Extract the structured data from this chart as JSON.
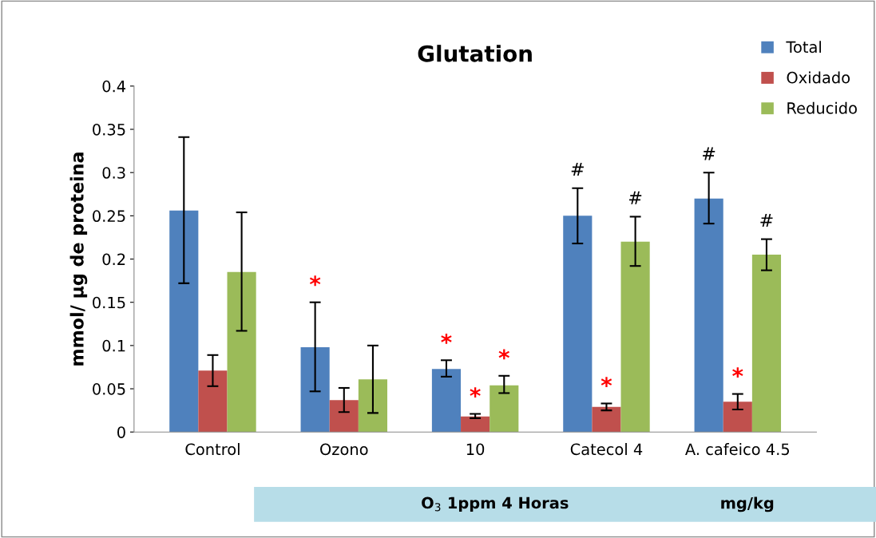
{
  "chart_data": {
    "type": "bar",
    "title": "Glutation",
    "ylabel": "mmol/ µg de proteina",
    "categories": [
      "Control",
      "Ozono",
      "10",
      "Catecol 4",
      "A. cafeico 4.5"
    ],
    "series": [
      {
        "name": "Total",
        "color": "#4f81bd",
        "values": [
          0.256,
          0.098,
          0.073,
          0.25,
          0.27
        ],
        "errors": [
          [
            0.172,
            0.341
          ],
          [
            0.047,
            0.15
          ],
          [
            0.064,
            0.083
          ],
          [
            0.218,
            0.282
          ],
          [
            0.241,
            0.3
          ]
        ],
        "value_labels": [
          null,
          "*",
          "*",
          "#",
          "#"
        ]
      },
      {
        "name": "Oxidado",
        "color": "#c0504d",
        "values": [
          0.071,
          0.037,
          0.018,
          0.029,
          0.035
        ],
        "errors": [
          [
            0.053,
            0.089
          ],
          [
            0.023,
            0.051
          ],
          [
            0.016,
            0.021
          ],
          [
            0.025,
            0.033
          ],
          [
            0.026,
            0.044
          ]
        ],
        "value_labels": [
          null,
          null,
          "*",
          "*",
          "*"
        ]
      },
      {
        "name": "Reducido",
        "color": "#9bbb59",
        "values": [
          0.185,
          0.061,
          0.054,
          0.22,
          0.205
        ],
        "errors": [
          [
            0.117,
            0.254
          ],
          [
            0.022,
            0.1
          ],
          [
            0.045,
            0.065
          ],
          [
            0.192,
            0.249
          ],
          [
            0.187,
            0.223
          ]
        ],
        "value_labels": [
          null,
          null,
          "*",
          "#",
          "#"
        ]
      }
    ],
    "ylim": [
      0,
      0.4
    ],
    "yticks": [
      0,
      0.05,
      0.1,
      0.15,
      0.2,
      0.25,
      0.3,
      0.35,
      0.4
    ],
    "grid": false,
    "legend": "top right",
    "annotations": [
      "O$_{3}$ 1ppm 4 Horas",
      "mg/kg"
    ]
  }
}
